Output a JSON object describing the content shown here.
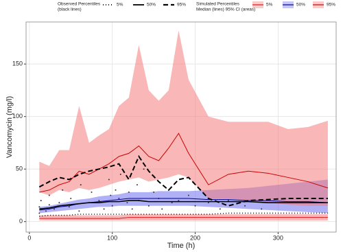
{
  "chart_data": {
    "type": "vpc",
    "x_label": "Time (h)",
    "y_label": "Vancomycin (mg/l)",
    "xlim": [
      -4,
      370
    ],
    "ylim": [
      -10,
      190
    ],
    "xticks": [
      0,
      100,
      200,
      300
    ],
    "yticks": [
      0,
      50,
      100,
      150
    ],
    "grid": true,
    "x": [
      12,
      24,
      36,
      48,
      60,
      72,
      84,
      96,
      108,
      120,
      132,
      144,
      156,
      168,
      180,
      192,
      216,
      240,
      264,
      288,
      312,
      336,
      360
    ],
    "observed": {
      "title": [
        "Observed Percentiles",
        "(black lines)"
      ],
      "color": "#000000",
      "series": [
        {
          "name": "5%",
          "dash": "1 3",
          "values": [
            5,
            6,
            6,
            6,
            7,
            7,
            7,
            7,
            7,
            7,
            7,
            7,
            7,
            7,
            7,
            7,
            7,
            8,
            8,
            8,
            8,
            8,
            8
          ]
        },
        {
          "name": "50%",
          "dash": "none",
          "values": [
            12,
            13,
            15,
            16,
            17,
            18,
            18,
            19,
            19,
            20,
            20,
            19,
            19,
            19,
            19,
            19,
            19,
            19,
            19,
            18,
            18,
            18,
            18
          ]
        },
        {
          "name": "95%",
          "dash": "7 4",
          "values": [
            33,
            38,
            42,
            40,
            45,
            48,
            50,
            52,
            55,
            40,
            62,
            48,
            38,
            30,
            40,
            42,
            22,
            15,
            20,
            21,
            22,
            22,
            22
          ]
        }
      ]
    },
    "simulated": {
      "title": [
        "Simulated Percentiles",
        "Median (lines) 95% CI (areas)"
      ],
      "series": [
        {
          "name": "5%",
          "color": "#d7191c",
          "fill": "#f47c7c",
          "median": [
            3,
            3,
            3,
            3,
            3,
            3,
            3,
            3,
            3,
            4,
            4,
            4,
            4,
            4,
            4,
            4,
            4,
            4,
            4,
            4,
            4,
            4,
            4
          ],
          "lower": [
            1,
            1,
            1,
            1,
            1,
            1,
            1,
            1,
            1,
            1,
            1,
            1,
            1,
            1,
            1,
            1,
            1,
            1,
            1,
            1,
            1,
            1,
            1
          ],
          "upper": [
            6,
            6,
            6,
            6,
            6,
            6,
            6,
            6,
            6,
            7,
            7,
            7,
            7,
            7,
            7,
            7,
            7,
            7,
            7,
            7,
            7,
            7,
            7
          ]
        },
        {
          "name": "50%",
          "color": "#00008b",
          "fill": "#6f6ff0",
          "median": [
            11,
            12,
            14,
            15,
            17,
            18,
            19,
            20,
            21,
            22,
            22,
            22,
            22,
            22,
            22,
            22,
            21,
            21,
            20,
            20,
            19,
            19,
            18
          ],
          "lower": [
            8,
            9,
            10,
            11,
            12,
            13,
            14,
            14,
            15,
            15,
            15,
            15,
            15,
            15,
            15,
            15,
            14,
            13,
            12,
            11,
            10,
            9,
            8
          ],
          "upper": [
            14,
            15,
            17,
            19,
            21,
            22,
            24,
            25,
            26,
            28,
            28,
            28,
            29,
            29,
            29,
            29,
            30,
            31,
            32,
            34,
            36,
            38,
            40
          ]
        },
        {
          "name": "95%",
          "color": "#cc0000",
          "fill": "#f47c7c",
          "median": [
            28,
            30,
            35,
            38,
            48,
            45,
            50,
            55,
            62,
            65,
            72,
            62,
            58,
            70,
            84,
            65,
            35,
            45,
            48,
            46,
            42,
            38,
            32
          ],
          "lower": [
            28,
            25,
            30,
            28,
            32,
            30,
            32,
            35,
            38,
            40,
            42,
            38,
            40,
            42,
            45,
            42,
            22,
            22,
            20,
            18,
            16,
            15,
            15
          ],
          "upper": [
            57,
            53,
            68,
            68,
            110,
            75,
            82,
            88,
            110,
            118,
            168,
            125,
            115,
            125,
            182,
            135,
            100,
            95,
            95,
            95,
            88,
            90,
            96
          ]
        }
      ]
    },
    "points": {
      "x": [
        12,
        12,
        14,
        20,
        24,
        24,
        30,
        36,
        40,
        48,
        50,
        60,
        62,
        72,
        75,
        84,
        90,
        96,
        98,
        100,
        104,
        108,
        110,
        118,
        120,
        124,
        130,
        132,
        138,
        144,
        150,
        156,
        160,
        168,
        172,
        180,
        192,
        200,
        216,
        230,
        240,
        260,
        280
      ],
      "y": [
        14,
        8,
        20,
        10,
        16,
        25,
        12,
        18,
        30,
        14,
        22,
        10,
        35,
        18,
        28,
        20,
        12,
        40,
        25,
        15,
        30,
        22,
        45,
        18,
        28,
        12,
        35,
        20,
        50,
        15,
        28,
        22,
        12,
        30,
        18,
        20,
        25,
        15,
        18,
        12,
        20,
        15,
        12
      ]
    }
  }
}
